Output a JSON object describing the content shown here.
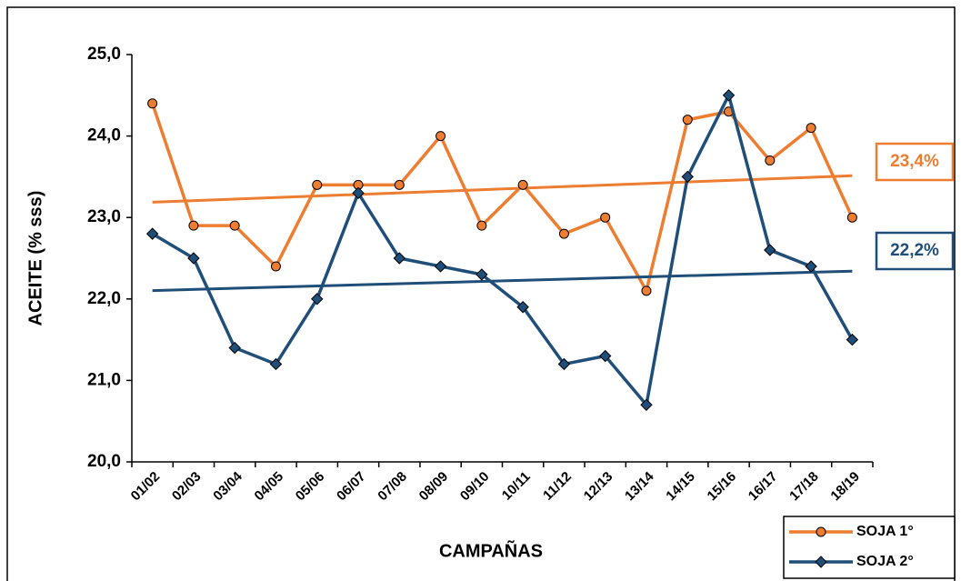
{
  "chart_data": {
    "type": "line",
    "x_label": "CAMPAÑAS",
    "y_label": "ACEITE (% sss)",
    "categories": [
      "01/02",
      "02/03",
      "03/04",
      "04/05",
      "05/06",
      "06/07",
      "07/08",
      "08/09",
      "09/10",
      "10/11",
      "11/12",
      "12/13",
      "13/14",
      "14/15",
      "15/16",
      "16/17",
      "17/18",
      "18/19"
    ],
    "series": [
      {
        "name": "SOJA 1°",
        "color": "#ED7D31",
        "marker": "circle",
        "values": [
          24.4,
          22.9,
          22.9,
          22.4,
          23.4,
          23.4,
          23.4,
          24.0,
          22.9,
          23.4,
          22.8,
          23.0,
          22.1,
          24.2,
          24.3,
          23.7,
          24.1,
          23.0
        ],
        "annotation": "23,4%"
      },
      {
        "name": "SOJA 2°",
        "color": "#1F4E79",
        "marker": "diamond",
        "values": [
          22.8,
          22.5,
          21.4,
          21.2,
          22.0,
          23.3,
          22.5,
          22.4,
          22.3,
          21.9,
          21.2,
          21.3,
          20.7,
          23.5,
          24.5,
          22.6,
          22.4,
          21.5
        ],
        "annotation": "22,2%"
      }
    ],
    "trendline": true,
    "ylim": [
      20,
      25
    ],
    "yticks": [
      {
        "value": 20,
        "label": "20,0"
      },
      {
        "value": 21,
        "label": "21,0"
      },
      {
        "value": 22,
        "label": "22,0"
      },
      {
        "value": 23,
        "label": "23,0"
      },
      {
        "value": 24,
        "label": "24,0"
      },
      {
        "value": 25,
        "label": "25,0"
      }
    ],
    "legend": "bottom-right"
  }
}
